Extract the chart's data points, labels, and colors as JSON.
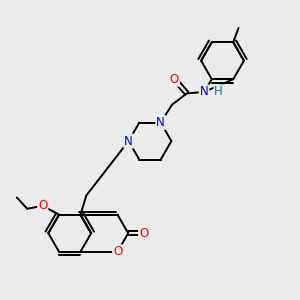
{
  "bg_color": "#ebebeb",
  "atom_color_N": "#0000ff",
  "atom_color_O": "#ff0000",
  "atom_color_H": "#008080",
  "bond_color": "#000000",
  "bond_width": 1.4,
  "font_size": 8.5,
  "figsize": [
    3.0,
    3.0
  ],
  "dpi": 100,
  "xlim": [
    0,
    10
  ],
  "ylim": [
    0,
    10
  ]
}
